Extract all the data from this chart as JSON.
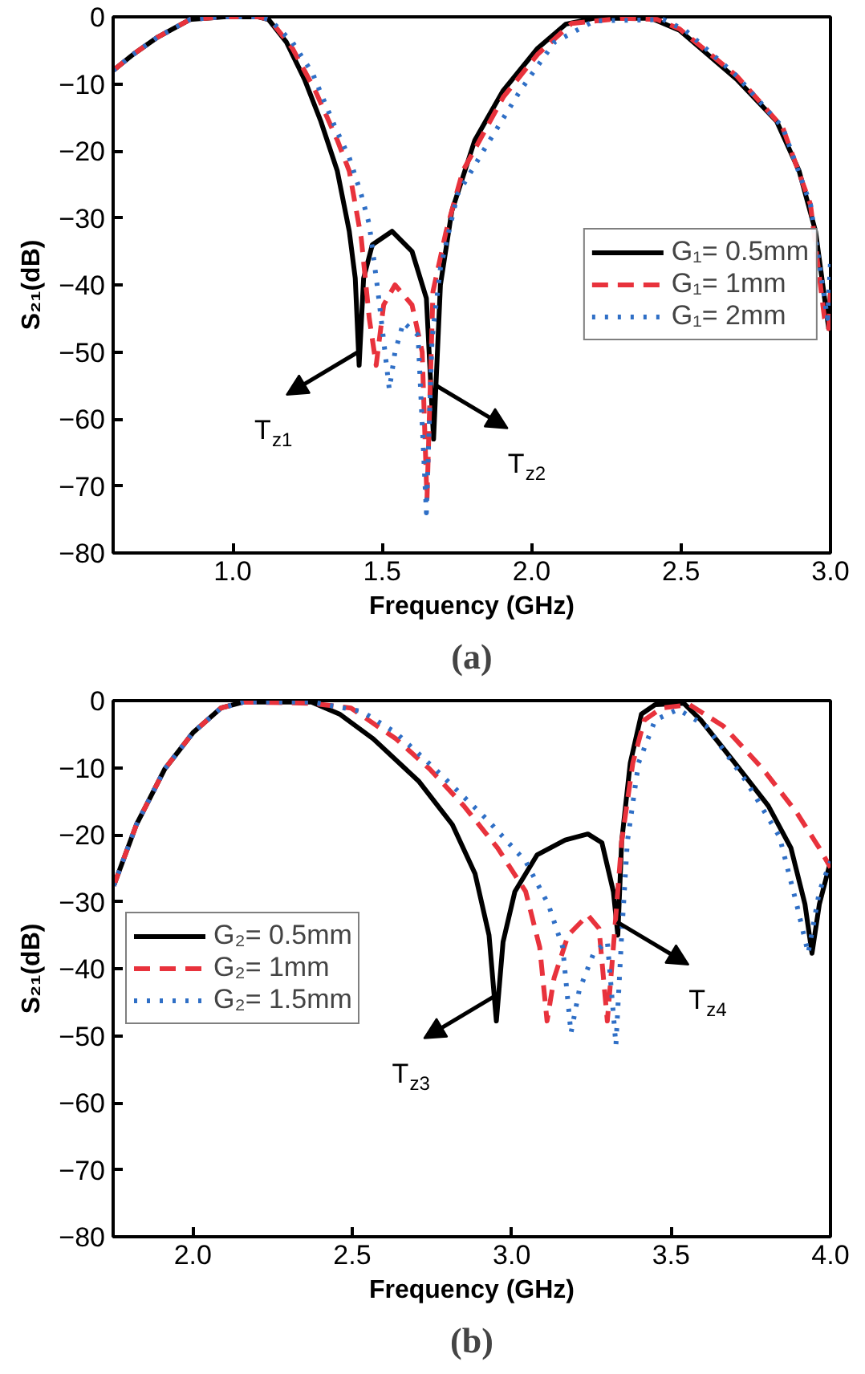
{
  "chart_data": [
    {
      "type": "line",
      "title": "(a)",
      "xlabel": "Frequency (GHz)",
      "ylabel": "S₂₁(dB)",
      "xlim": [
        0.6,
        3.0
      ],
      "ylim": [
        -80,
        0
      ],
      "xticks": [
        {
          "value": 1.0,
          "label": "1.0"
        },
        {
          "value": 1.5,
          "label": "1.5"
        },
        {
          "value": 2.0,
          "label": "2.0"
        },
        {
          "value": 2.5,
          "label": "2.5"
        },
        {
          "value": 3.0,
          "label": "3.0"
        }
      ],
      "yticks": [
        -80,
        -70,
        -60,
        -50,
        -40,
        -30,
        -20,
        -10,
        0
      ],
      "grid": false,
      "legend": "right",
      "annotations": [
        {
          "text": "T$_{z1}$",
          "x": 1.42,
          "y": -50
        },
        {
          "text": "T$_{z2}$",
          "x": 1.68,
          "y": -55
        }
      ],
      "series": [
        {
          "name": "G₁= 0.5mm",
          "color": "#000000",
          "line_style": "solid",
          "x": [
            0.6,
            0.667,
            0.75,
            0.857,
            0.97,
            1.086,
            1.12,
            1.18,
            1.24,
            1.295,
            1.35,
            1.39,
            1.41,
            1.423,
            1.438,
            1.467,
            1.533,
            1.6,
            1.648,
            1.672,
            1.695,
            1.733,
            1.81,
            1.905,
            2.02,
            2.114,
            2.21,
            2.4,
            2.495,
            2.686,
            2.82,
            2.895,
            2.95,
            2.994,
            3.0
          ],
          "values": [
            -8,
            -5.6,
            -3,
            -0.4,
            0,
            0,
            -0.4,
            -3.8,
            -9.3,
            -15.6,
            -23,
            -32,
            -39,
            -52,
            -39,
            -34,
            -32,
            -35,
            -42,
            -63,
            -40,
            -29,
            -18.4,
            -11,
            -4.7,
            -1.1,
            -0.2,
            -0.2,
            -2,
            -9.3,
            -15.6,
            -23,
            -32,
            -46.5,
            -41
          ]
        },
        {
          "name": "G₁= 1mm",
          "color": "#e8323c",
          "line_style": "dashed",
          "x": [
            0.6,
            0.667,
            0.75,
            0.857,
            0.97,
            1.086,
            1.124,
            1.2,
            1.276,
            1.35,
            1.39,
            1.43,
            1.457,
            1.48,
            1.505,
            1.543,
            1.6,
            1.634,
            1.65,
            1.67,
            1.714,
            1.77,
            1.905,
            2.02,
            2.133,
            2.305,
            2.42,
            2.495,
            2.686,
            2.84,
            2.933,
            2.98,
            2.994,
            3.0
          ],
          "values": [
            -8,
            -5.6,
            -3,
            -0.4,
            0,
            0,
            -0.4,
            -4.7,
            -11,
            -18.4,
            -23,
            -33,
            -45,
            -52,
            -43,
            -40,
            -43,
            -50,
            -72,
            -41,
            -32,
            -23,
            -12,
            -5.6,
            -1,
            -0.2,
            -0.4,
            -1.8,
            -8.8,
            -16.5,
            -28,
            -45,
            -46.5,
            -41
          ]
        },
        {
          "name": "G₁= 2mm",
          "color": "#2f6fc6",
          "line_style": "dotted",
          "x": [
            0.6,
            0.667,
            0.75,
            0.857,
            0.97,
            1.086,
            1.124,
            1.2,
            1.267,
            1.343,
            1.39,
            1.43,
            1.457,
            1.486,
            1.524,
            1.543,
            1.571,
            1.62,
            1.648,
            1.667,
            1.695,
            1.752,
            1.848,
            1.962,
            2.076,
            2.21,
            2.44,
            2.514,
            2.686,
            2.84,
            2.933,
            2.99,
            3.0
          ],
          "values": [
            -8,
            -5.6,
            -3,
            -0.4,
            0,
            0,
            -0.4,
            -3.8,
            -8.4,
            -16.5,
            -21,
            -26.5,
            -31,
            -41,
            -55.6,
            -50,
            -45.6,
            -47.5,
            -74,
            -48,
            -37.5,
            -26.5,
            -19.3,
            -11,
            -3.8,
            -0.6,
            -0.4,
            -2,
            -8.8,
            -16.5,
            -28,
            -45,
            -36.5
          ]
        }
      ]
    },
    {
      "type": "line",
      "title": "(b)",
      "xlabel": "Frequency (GHz)",
      "ylabel": "S₂₁(dB)",
      "xlim": [
        1.75,
        4.0
      ],
      "ylim": [
        -80,
        0
      ],
      "xticks": [
        {
          "value": 2.0,
          "label": "2.0"
        },
        {
          "value": 2.5,
          "label": "2.5"
        },
        {
          "value": 3.0,
          "label": "3.0"
        },
        {
          "value": 3.5,
          "label": "3.5"
        },
        {
          "value": 4.0,
          "label": "4.0"
        }
      ],
      "yticks": [
        -80,
        -70,
        -60,
        -50,
        -40,
        -30,
        -20,
        -10,
        0
      ],
      "grid": false,
      "legend": "left",
      "annotations": [
        {
          "text": "T$_{z3}$",
          "x": 2.95,
          "y": -44
        },
        {
          "text": "T$_{z4}$",
          "x": 3.33,
          "y": -33
        }
      ],
      "series": [
        {
          "name": "G₂= 0.5mm",
          "color": "#000000",
          "line_style": "solid",
          "x": [
            1.752,
            1.823,
            1.912,
            2.0,
            2.088,
            2.16,
            2.372,
            2.46,
            2.566,
            2.708,
            2.814,
            2.885,
            2.929,
            2.952,
            2.973,
            3.01,
            3.08,
            3.168,
            3.239,
            3.283,
            3.319,
            3.333,
            3.345,
            3.372,
            3.407,
            3.45,
            3.54,
            3.593,
            3.7,
            3.805,
            3.876,
            3.92,
            3.942,
            3.965,
            4.0
          ],
          "values": [
            -27.6,
            -18.5,
            -10.2,
            -4.8,
            -1.1,
            -0.2,
            -0.2,
            -2,
            -5.7,
            -12,
            -18.5,
            -25.8,
            -35,
            -47.8,
            -36,
            -28.5,
            -23,
            -20.8,
            -19.9,
            -21.2,
            -28.5,
            -35,
            -21,
            -9.3,
            -2,
            -0.6,
            -0.4,
            -2.9,
            -9.3,
            -15.7,
            -22,
            -30.4,
            -37.7,
            -30.4,
            -24
          ]
        },
        {
          "name": "G₂= 1mm",
          "color": "#e8323c",
          "line_style": "dashed",
          "x": [
            1.752,
            1.823,
            1.912,
            2.0,
            2.088,
            2.16,
            2.372,
            2.496,
            2.637,
            2.743,
            2.85,
            2.956,
            3.044,
            3.088,
            3.111,
            3.133,
            3.177,
            3.239,
            3.274,
            3.3,
            3.319,
            3.345,
            3.38,
            3.416,
            3.47,
            3.558,
            3.664,
            3.788,
            3.894,
            3.965,
            4.0
          ],
          "values": [
            -27.6,
            -18.5,
            -10.2,
            -4.8,
            -1.1,
            -0.2,
            -0.4,
            -1.1,
            -5.7,
            -10.2,
            -15.7,
            -22,
            -28.5,
            -36.8,
            -47.8,
            -41.4,
            -35,
            -32,
            -34,
            -47.8,
            -36.8,
            -21,
            -9.3,
            -2.9,
            -1.1,
            -0.6,
            -3.8,
            -10.2,
            -16.7,
            -22,
            -24.9
          ]
        },
        {
          "name": "G₂= 1.5mm",
          "color": "#2f6fc6",
          "line_style": "dotted",
          "x": [
            1.752,
            1.823,
            1.912,
            2.0,
            2.088,
            2.16,
            2.372,
            2.53,
            2.637,
            2.76,
            2.92,
            3.044,
            3.115,
            3.16,
            3.186,
            3.212,
            3.257,
            3.3,
            3.327,
            3.345,
            3.363,
            3.398,
            3.45,
            3.522,
            3.61,
            3.735,
            3.84,
            3.894,
            3.93,
            3.965,
            4.0
          ],
          "values": [
            -27.6,
            -18.5,
            -10.2,
            -4.8,
            -1.1,
            -0.2,
            -0.2,
            -1.6,
            -4.8,
            -10.2,
            -17.6,
            -24,
            -30.4,
            -36.8,
            -49.6,
            -43.2,
            -37.7,
            -35.9,
            -51.4,
            -35,
            -21,
            -9.3,
            -2.9,
            -1.3,
            -3.8,
            -12,
            -20.3,
            -30.4,
            -37.7,
            -28.5,
            -24
          ]
        }
      ]
    }
  ]
}
